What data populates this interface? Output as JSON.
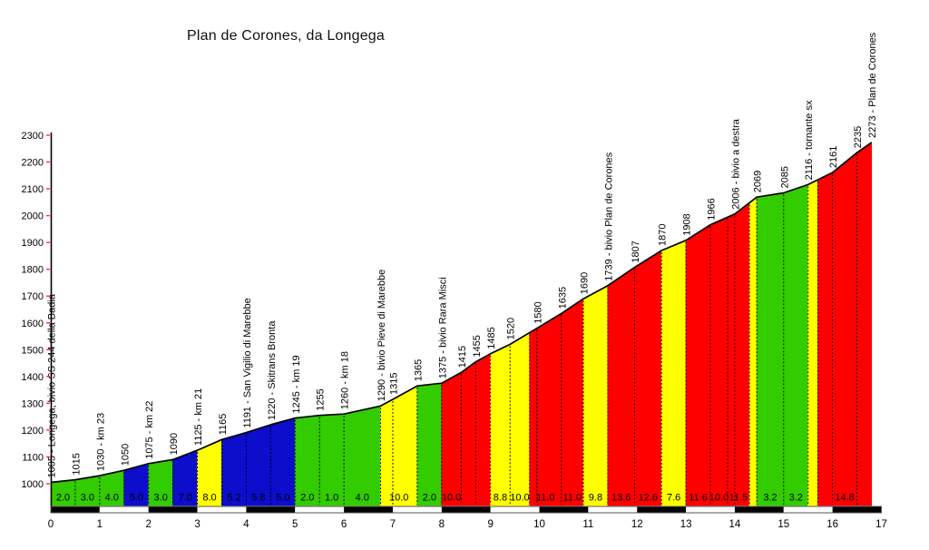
{
  "chart_data": {
    "type": "area",
    "title": "Plan de Corones, da Longega",
    "x_axis": {
      "unit": "km",
      "min": 0,
      "max": 17,
      "tick_interval": 1,
      "tick_labels": [
        "0",
        "1",
        "2",
        "3",
        "4",
        "5",
        "6",
        "7",
        "8",
        "9",
        "10",
        "11",
        "12",
        "13",
        "14",
        "15",
        "16",
        "17"
      ]
    },
    "y_axis": {
      "unit": "m",
      "min": 1000,
      "max": 2300,
      "tick_interval": 100,
      "tick_labels": [
        "1000",
        "1100",
        "1200",
        "1300",
        "1400",
        "1500",
        "1600",
        "1700",
        "1800",
        "1900",
        "2000",
        "2100",
        "2200",
        "2300"
      ]
    },
    "colors": {
      "green": "#33cc00",
      "blue": "#0d0dcc",
      "yellow": "#ffff00",
      "red": "#ff0000",
      "tick": "#ff3333",
      "axis": "#000000",
      "bar_black": "#000000",
      "bar_white": "#ffffff"
    },
    "points": [
      {
        "km": 0.0,
        "elev": 1005,
        "label": "1005 - Longega, bivio SS 244 della Badia"
      },
      {
        "km": 0.5,
        "elev": 1015,
        "label": "1015"
      },
      {
        "km": 1.0,
        "elev": 1030,
        "label": "1030 - km 23"
      },
      {
        "km": 1.5,
        "elev": 1050,
        "label": "1050"
      },
      {
        "km": 2.0,
        "elev": 1075,
        "label": "1075 - km 22"
      },
      {
        "km": 2.5,
        "elev": 1090,
        "label": "1090"
      },
      {
        "km": 3.0,
        "elev": 1125,
        "label": "1125 - km 21"
      },
      {
        "km": 3.5,
        "elev": 1165,
        "label": "1165"
      },
      {
        "km": 4.0,
        "elev": 1191,
        "label": "1191 - San Vigilio di Marebbe"
      },
      {
        "km": 4.5,
        "elev": 1220,
        "label": "1220 - Skitrans Bronta"
      },
      {
        "km": 5.0,
        "elev": 1245,
        "label": "1245 - km 19"
      },
      {
        "km": 5.5,
        "elev": 1255,
        "label": "1255"
      },
      {
        "km": 6.0,
        "elev": 1260,
        "label": "1260 - km 18"
      },
      {
        "km": 6.75,
        "elev": 1290,
        "label": "1290 - bivio Pieve di Marebbe"
      },
      {
        "km": 7.0,
        "elev": 1315,
        "label": "1315"
      },
      {
        "km": 7.5,
        "elev": 1365,
        "label": "1365"
      },
      {
        "km": 8.0,
        "elev": 1375,
        "label": "1375 - bivio Rara Misci"
      },
      {
        "km": 8.4,
        "elev": 1415,
        "label": "1415"
      },
      {
        "km": 8.7,
        "elev": 1455,
        "label": "1455"
      },
      {
        "km": 9.0,
        "elev": 1485,
        "label": "1485"
      },
      {
        "km": 9.4,
        "elev": 1520,
        "label": "1520"
      },
      {
        "km": 9.95,
        "elev": 1580,
        "label": "1580"
      },
      {
        "km": 10.45,
        "elev": 1635,
        "label": "1635"
      },
      {
        "km": 10.9,
        "elev": 1690,
        "label": "1690"
      },
      {
        "km": 11.4,
        "elev": 1739,
        "label": "1739 - bivio Plan de Corones"
      },
      {
        "km": 11.95,
        "elev": 1807,
        "label": "1807"
      },
      {
        "km": 12.5,
        "elev": 1870,
        "label": "1870"
      },
      {
        "km": 13.0,
        "elev": 1908,
        "label": "1908"
      },
      {
        "km": 13.5,
        "elev": 1966,
        "label": "1966"
      },
      {
        "km": 14.0,
        "elev": 2006,
        "label": "2006 - bivio a destra"
      },
      {
        "km": 14.45,
        "elev": 2069,
        "label": "2069"
      },
      {
        "km": 15.0,
        "elev": 2085,
        "label": "2085"
      },
      {
        "km": 15.5,
        "elev": 2116,
        "label": "2116 - tornante sx"
      },
      {
        "km": 16.0,
        "elev": 2161,
        "label": "2161"
      },
      {
        "km": 16.5,
        "elev": 2235,
        "label": "2235"
      },
      {
        "km": 16.8,
        "elev": 2273,
        "label": "2273 - Plan de Corones"
      }
    ],
    "gradient_segments": [
      {
        "from": 0.0,
        "to": 0.5,
        "grade": "2.0",
        "color": "green"
      },
      {
        "from": 0.5,
        "to": 1.0,
        "grade": "3.0",
        "color": "green"
      },
      {
        "from": 1.0,
        "to": 1.5,
        "grade": "4.0",
        "color": "green"
      },
      {
        "from": 1.5,
        "to": 2.0,
        "grade": "5.0",
        "color": "blue"
      },
      {
        "from": 2.0,
        "to": 2.5,
        "grade": "3.0",
        "color": "green"
      },
      {
        "from": 2.5,
        "to": 3.0,
        "grade": "7.0",
        "color": "blue"
      },
      {
        "from": 3.0,
        "to": 3.5,
        "grade": "8.0",
        "color": "yellow"
      },
      {
        "from": 3.5,
        "to": 4.0,
        "grade": "5.2",
        "color": "blue"
      },
      {
        "from": 4.0,
        "to": 4.5,
        "grade": "5.8",
        "color": "blue"
      },
      {
        "from": 4.5,
        "to": 5.0,
        "grade": "5.0",
        "color": "blue"
      },
      {
        "from": 5.0,
        "to": 5.5,
        "grade": "2.0",
        "color": "green"
      },
      {
        "from": 5.5,
        "to": 6.0,
        "grade": "1.0",
        "color": "green"
      },
      {
        "from": 6.0,
        "to": 6.75,
        "grade": "4.0",
        "color": "green"
      },
      {
        "from": 6.75,
        "to": 7.5,
        "grade": "10.0",
        "color": "yellow"
      },
      {
        "from": 7.5,
        "to": 8.0,
        "grade": "2.0",
        "color": "green"
      },
      {
        "from": 8.0,
        "to": 8.4,
        "grade": "10.0",
        "color": "red"
      },
      {
        "from": 8.4,
        "to": 9.0,
        "grade": "",
        "color": "red"
      },
      {
        "from": 9.0,
        "to": 9.4,
        "grade": "8.8",
        "color": "yellow"
      },
      {
        "from": 9.4,
        "to": 9.8,
        "grade": "10.0",
        "color": "yellow"
      },
      {
        "from": 9.8,
        "to": 10.45,
        "grade": "11.0",
        "color": "red"
      },
      {
        "from": 10.45,
        "to": 10.9,
        "grade": "11.0",
        "color": "red"
      },
      {
        "from": 10.9,
        "to": 11.4,
        "grade": "9.8",
        "color": "yellow"
      },
      {
        "from": 11.4,
        "to": 11.95,
        "grade": "13.6",
        "color": "red"
      },
      {
        "from": 11.95,
        "to": 12.5,
        "grade": "12.6",
        "color": "red"
      },
      {
        "from": 12.5,
        "to": 13.0,
        "grade": "7.6",
        "color": "yellow"
      },
      {
        "from": 13.0,
        "to": 13.5,
        "grade": "11.6",
        "color": "red"
      },
      {
        "from": 13.5,
        "to": 13.85,
        "grade": "10.0",
        "color": "red"
      },
      {
        "from": 13.85,
        "to": 14.3,
        "grade": "11.5",
        "color": "red"
      },
      {
        "from": 14.3,
        "to": 14.45,
        "grade": "",
        "color": "yellow"
      },
      {
        "from": 14.45,
        "to": 15.0,
        "grade": "3.2",
        "color": "green"
      },
      {
        "from": 15.0,
        "to": 15.5,
        "grade": "3.2",
        "color": "green"
      },
      {
        "from": 15.5,
        "to": 15.7,
        "grade": "",
        "color": "yellow"
      },
      {
        "from": 15.7,
        "to": 16.8,
        "grade": "14.8",
        "color": "red"
      }
    ],
    "km_scale_bar": {
      "pattern": "alternating black/white per km",
      "from": 0,
      "to": 17
    }
  }
}
